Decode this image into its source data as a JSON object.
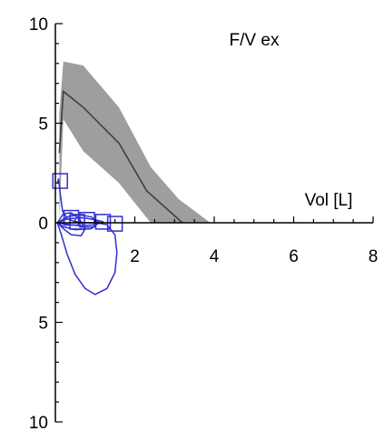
{
  "chart_data": {
    "type": "line",
    "title": "F/V ex",
    "xlabel": "Vol [L]",
    "ylabel": "",
    "xlim": [
      0,
      8
    ],
    "ylim": [
      -10,
      10
    ],
    "x_ticks": [
      2,
      4,
      6,
      8
    ],
    "y_ticks": [
      10,
      5,
      0,
      -5,
      -10
    ],
    "y_tick_labels": [
      "10",
      "5",
      "0",
      "5",
      "10"
    ],
    "colors": {
      "band": "#9e9e9e",
      "predicted": "#404040",
      "measured": "#3030d0",
      "axis": "#000000"
    },
    "predicted_band": {
      "x": [
        0.1,
        0.2,
        0.7,
        1.6,
        2.4,
        3.1,
        3.9
      ],
      "upper": [
        5.5,
        8.1,
        7.9,
        5.8,
        2.8,
        1.2,
        0.0
      ],
      "lower": [
        0.0,
        5.2,
        3.6,
        2.0,
        0.0,
        0.0,
        0.0
      ]
    },
    "predicted_mean": {
      "x": [
        0.1,
        0.2,
        0.7,
        1.6,
        2.3,
        3.2
      ],
      "y": [
        3.5,
        6.6,
        5.8,
        4.0,
        1.6,
        0.0
      ]
    },
    "series": [
      {
        "x": [
          0.05,
          0.08,
          0.12,
          0.18,
          0.3,
          0.5,
          0.8,
          1.05,
          1.3,
          1.5,
          1.55,
          1.5,
          1.3,
          1.0,
          0.75,
          0.5,
          0.3,
          0.15,
          0.05
        ],
        "y": [
          2.0,
          2.2,
          1.5,
          0.6,
          0.2,
          0.05,
          0.0,
          0.0,
          -0.1,
          -0.6,
          -1.5,
          -2.5,
          -3.3,
          -3.6,
          -3.3,
          -2.6,
          -1.6,
          -0.6,
          0.0
        ]
      },
      {
        "x": [
          0.05,
          0.2,
          0.4,
          0.6,
          0.75,
          0.65,
          0.4,
          0.2,
          0.05
        ],
        "y": [
          0.0,
          0.45,
          0.5,
          0.2,
          -0.3,
          -0.65,
          -0.6,
          -0.3,
          0.0
        ]
      },
      {
        "x": [
          0.05,
          0.3,
          0.6,
          0.9,
          1.1,
          0.9,
          0.5,
          0.2,
          0.05
        ],
        "y": [
          0.0,
          0.3,
          0.4,
          0.3,
          0.0,
          -0.3,
          -0.35,
          -0.2,
          0.0
        ]
      },
      {
        "x": [
          0.05,
          0.3,
          0.7,
          1.0,
          1.2,
          1.0,
          0.6,
          0.2,
          0.05
        ],
        "y": [
          0.0,
          0.2,
          0.25,
          0.15,
          0.05,
          -0.1,
          -0.15,
          -0.05,
          0.0
        ]
      }
    ],
    "markers": {
      "x": [
        0.12,
        0.4,
        0.55,
        0.8,
        1.2,
        1.5
      ],
      "y": [
        2.1,
        0.25,
        0.05,
        0.15,
        0.05,
        -0.05
      ]
    },
    "grid": false,
    "legend": "none"
  }
}
